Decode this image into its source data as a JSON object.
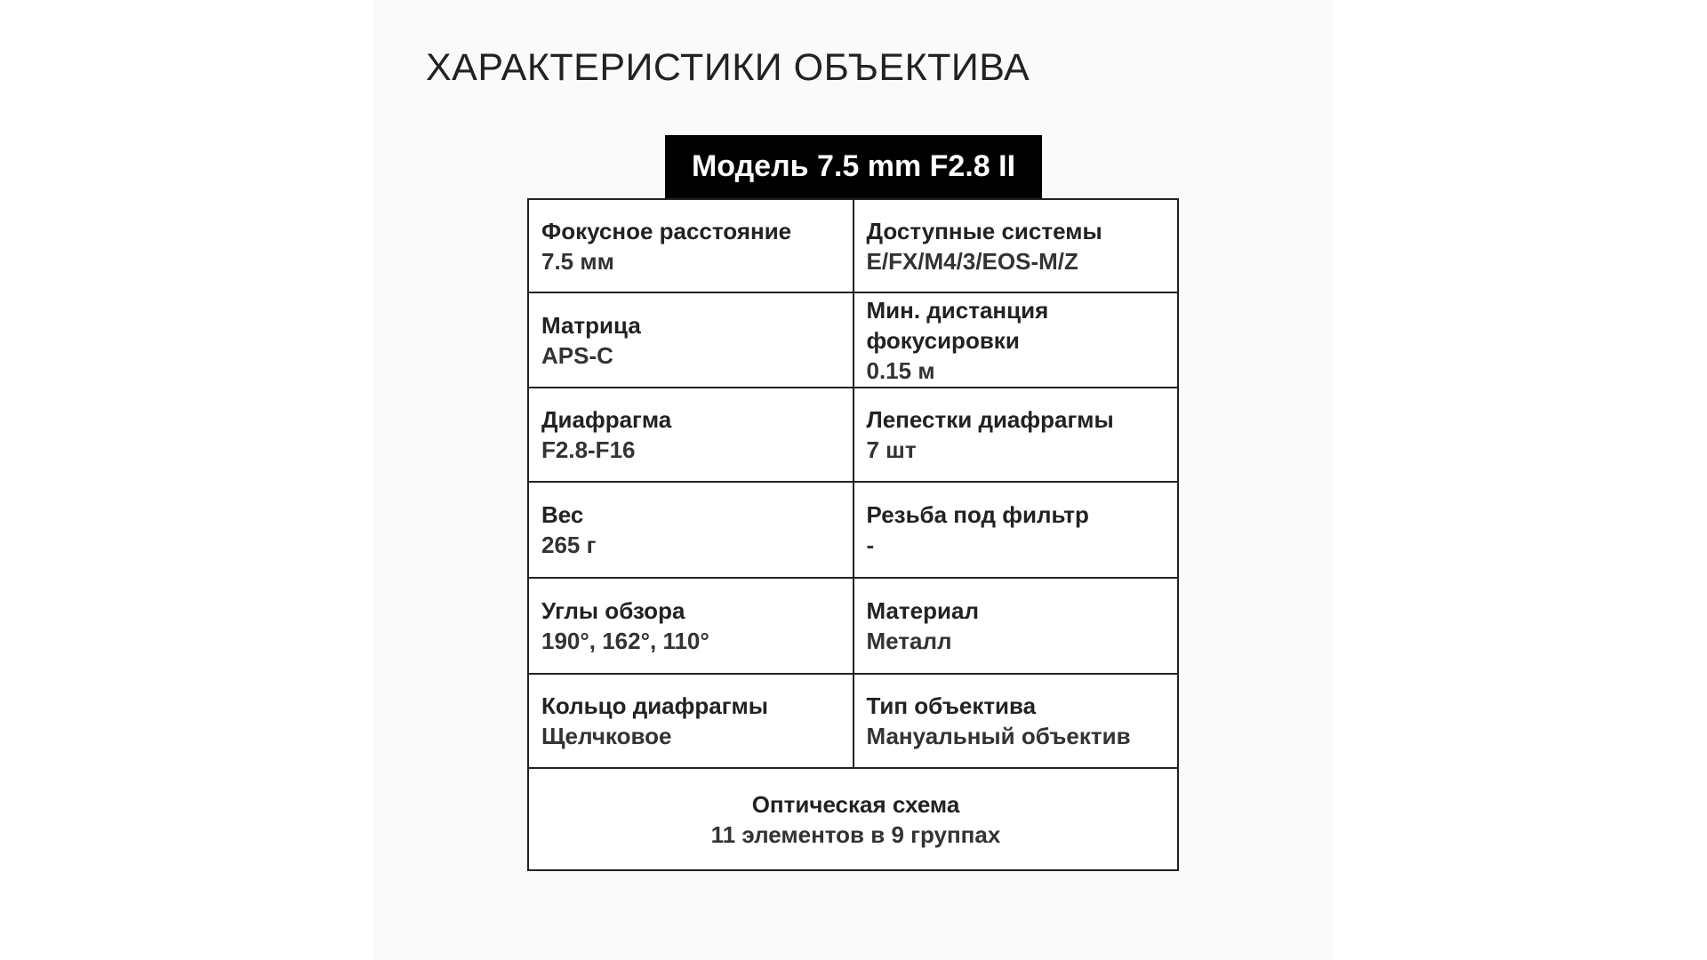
{
  "title": "ХАРАКТЕРИСТИКИ ОБЪЕКТИВА",
  "model": "Модель 7.5 mm F2.8 II",
  "rows": [
    [
      {
        "label": "Фокусное расстояние",
        "value": "7.5 мм"
      },
      {
        "label": "Доступные системы",
        "value": "E/FX/M4/3/EOS-M/Z"
      }
    ],
    [
      {
        "label": "Матрица",
        "value": "APS-C"
      },
      {
        "label": "Мин. дистанция фокусировки",
        "value": "0.15 м"
      }
    ],
    [
      {
        "label": "Диафрагма",
        "value": "F2.8-F16"
      },
      {
        "label": "Лепестки диафрагмы",
        "value": "7 шт"
      }
    ],
    [
      {
        "label": "Вес",
        "value": "265 г"
      },
      {
        "label": "Резьба под фильтр",
        "value": "-"
      }
    ],
    [
      {
        "label": "Углы обзора",
        "value": "190°, 162°, 110°"
      },
      {
        "label": "Материал",
        "value": "Металл"
      }
    ],
    [
      {
        "label": "Кольцо диафрагмы",
        "value": "Щелчковое"
      },
      {
        "label": "Тип объектива",
        "value": "Мануальный объектив"
      }
    ]
  ],
  "footer": {
    "label": "Оптическая схема",
    "value": "11 элементов в 9 группах"
  }
}
